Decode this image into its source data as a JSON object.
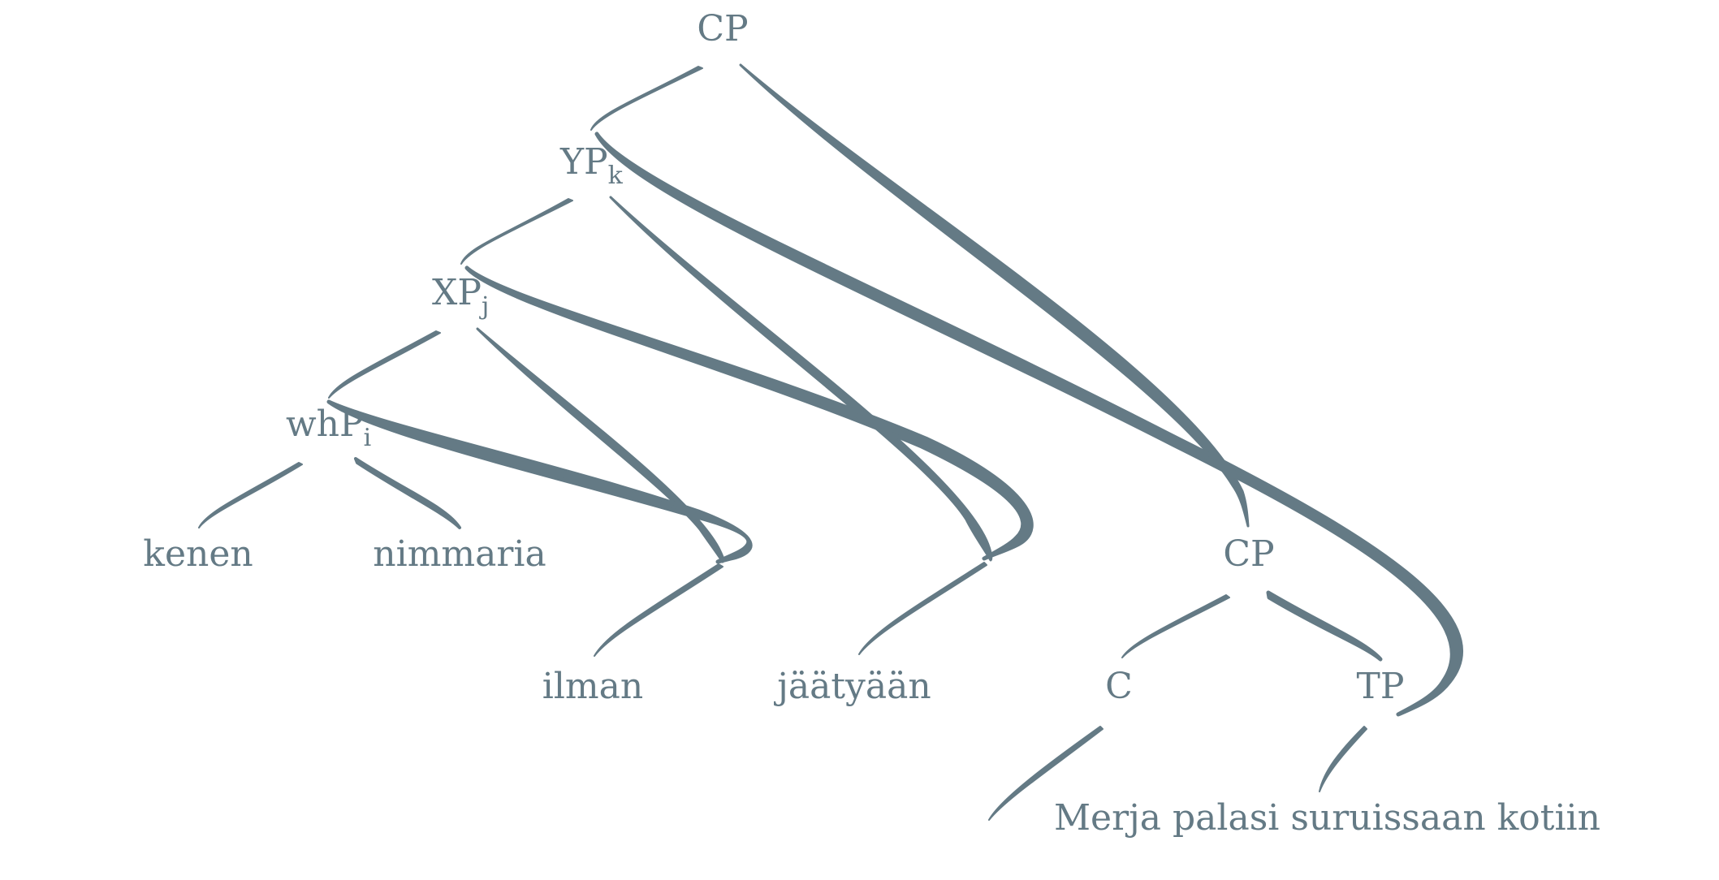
{
  "diagram": {
    "type": "syntax-tree",
    "color": "#647a85",
    "nodes": {
      "cp_root": {
        "label": "CP",
        "sub": ""
      },
      "yp": {
        "label": "YP",
        "sub": "k"
      },
      "xp": {
        "label": "XP",
        "sub": "j"
      },
      "whp": {
        "label": "whP",
        "sub": "i"
      },
      "kenen": {
        "label": "kenen",
        "sub": ""
      },
      "nimmaria": {
        "label": "nimmaria",
        "sub": ""
      },
      "ilman": {
        "label": "ilman",
        "sub": ""
      },
      "jaatyaan": {
        "label": "jäätyään",
        "sub": ""
      },
      "cp_low": {
        "label": "CP",
        "sub": ""
      },
      "c": {
        "label": "C",
        "sub": ""
      },
      "tp": {
        "label": "TP",
        "sub": ""
      },
      "clause": {
        "label": "Merja palasi suruissaan kotiin",
        "sub": ""
      }
    }
  }
}
